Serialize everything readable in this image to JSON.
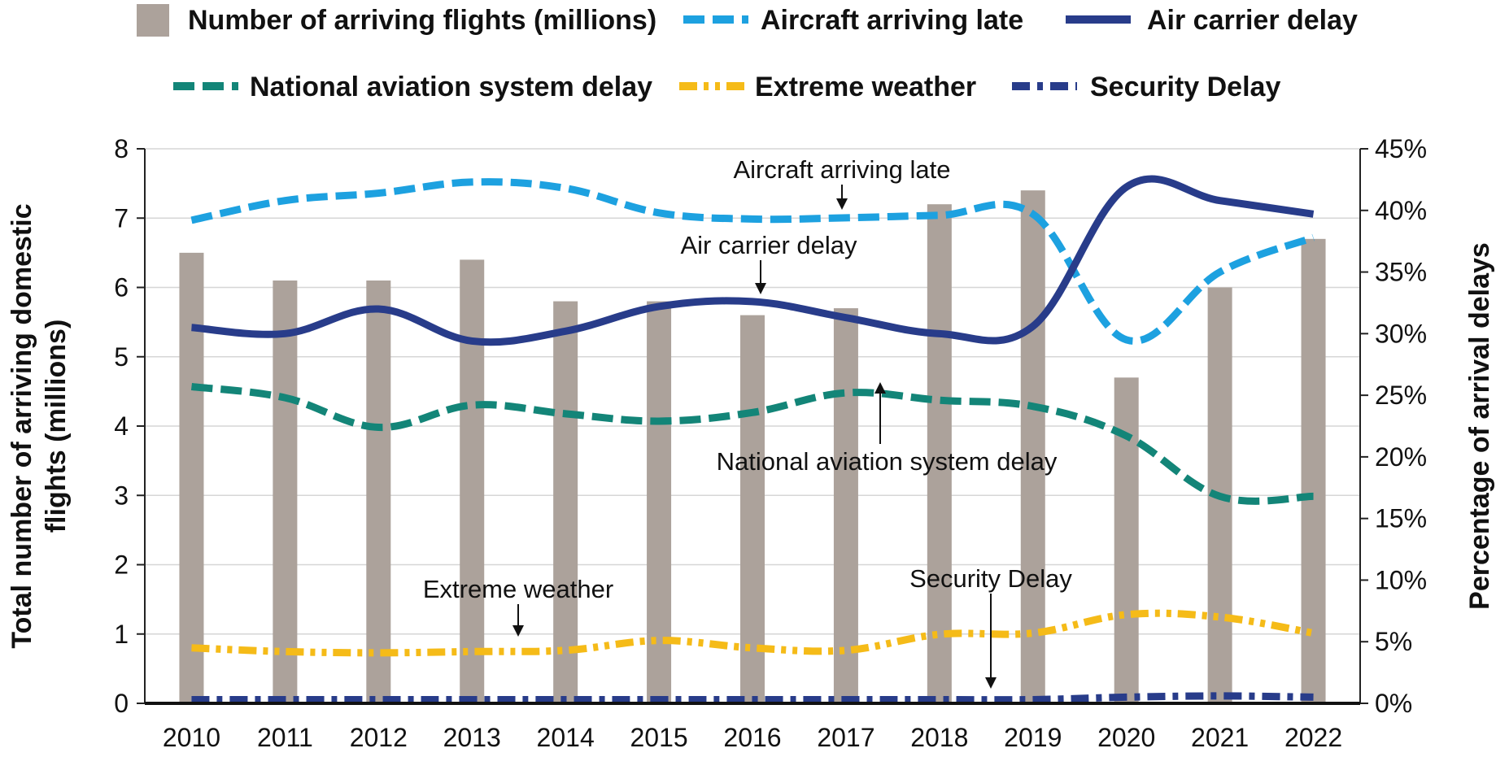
{
  "chart_data": {
    "type": "bar",
    "categories": [
      "2010",
      "2011",
      "2012",
      "2013",
      "2014",
      "2015",
      "2016",
      "2017",
      "2018",
      "2019",
      "2020",
      "2021",
      "2022"
    ],
    "bars": {
      "name": "Number of arriving flights (millions)",
      "color": "#aca29b",
      "axis": "left",
      "values": [
        6.5,
        6.1,
        6.1,
        6.4,
        5.8,
        5.8,
        5.6,
        5.7,
        7.2,
        7.4,
        4.7,
        6.0,
        6.7
      ]
    },
    "series": [
      {
        "name": "Aircraft arriving late",
        "type": "line",
        "axis": "right",
        "color": "#1da1e0",
        "dash": "dash",
        "values": [
          39.2,
          40.8,
          41.4,
          42.3,
          41.8,
          39.8,
          39.3,
          39.4,
          39.6,
          39.7,
          29.5,
          35.0,
          37.8
        ]
      },
      {
        "name": "Air carrier delay",
        "type": "line",
        "axis": "right",
        "color": "#283c8a",
        "dash": "solid",
        "values": [
          30.5,
          30.0,
          32.0,
          29.4,
          30.2,
          32.2,
          32.6,
          31.3,
          30.0,
          30.6,
          41.9,
          40.8,
          39.7
        ]
      },
      {
        "name": "National aviation system delay",
        "type": "line",
        "axis": "right",
        "color": "#138578",
        "dash": "dash",
        "values": [
          25.7,
          24.8,
          22.4,
          24.2,
          23.5,
          22.9,
          23.6,
          25.2,
          24.6,
          24.1,
          21.7,
          16.8,
          16.8
        ]
      },
      {
        "name": "Extreme weather",
        "type": "line",
        "axis": "right",
        "color": "#f5bb18",
        "dash": "dashdotdot",
        "values": [
          4.5,
          4.2,
          4.1,
          4.2,
          4.3,
          5.1,
          4.5,
          4.3,
          5.6,
          5.7,
          7.2,
          7.0,
          5.7
        ]
      },
      {
        "name": "Security Delay",
        "type": "line",
        "axis": "right",
        "color": "#283c8a",
        "dash": "dashdot",
        "values": [
          0.3,
          0.3,
          0.3,
          0.3,
          0.3,
          0.3,
          0.3,
          0.3,
          0.3,
          0.3,
          0.5,
          0.6,
          0.5
        ]
      }
    ],
    "y_left": {
      "label_line1": "Total number of arriving domestic",
      "label_line2": "flights (millions)",
      "ylim": [
        0,
        8
      ],
      "ticks": [
        "0",
        "1",
        "2",
        "3",
        "4",
        "5",
        "6",
        "7",
        "8"
      ]
    },
    "y_right": {
      "label": "Percentage of arrival delays",
      "ylim": [
        0,
        45
      ],
      "ticks": [
        "0%",
        "5%",
        "10%",
        "15%",
        "20%",
        "25%",
        "30%",
        "35%",
        "40%",
        "45%"
      ]
    },
    "legend": {
      "placement": "top",
      "entries": [
        "Number of arriving flights (millions)",
        "Aircraft arriving late",
        "Air carrier delay",
        "National aviation system delay",
        "Extreme weather",
        "Security Delay"
      ]
    },
    "annotations": [
      {
        "text": "Aircraft arriving late",
        "series": "Aircraft arriving late",
        "x": "2017"
      },
      {
        "text": "Air carrier delay",
        "series": "Air carrier delay",
        "x": "2016"
      },
      {
        "text": "National aviation system delay",
        "series": "National aviation system delay",
        "x": "2017"
      },
      {
        "text": "Extreme weather",
        "series": "Extreme weather",
        "x": "2014"
      },
      {
        "text": "Security Delay",
        "series": "Security Delay",
        "x": "2019"
      }
    ],
    "grid": "horizontal"
  }
}
